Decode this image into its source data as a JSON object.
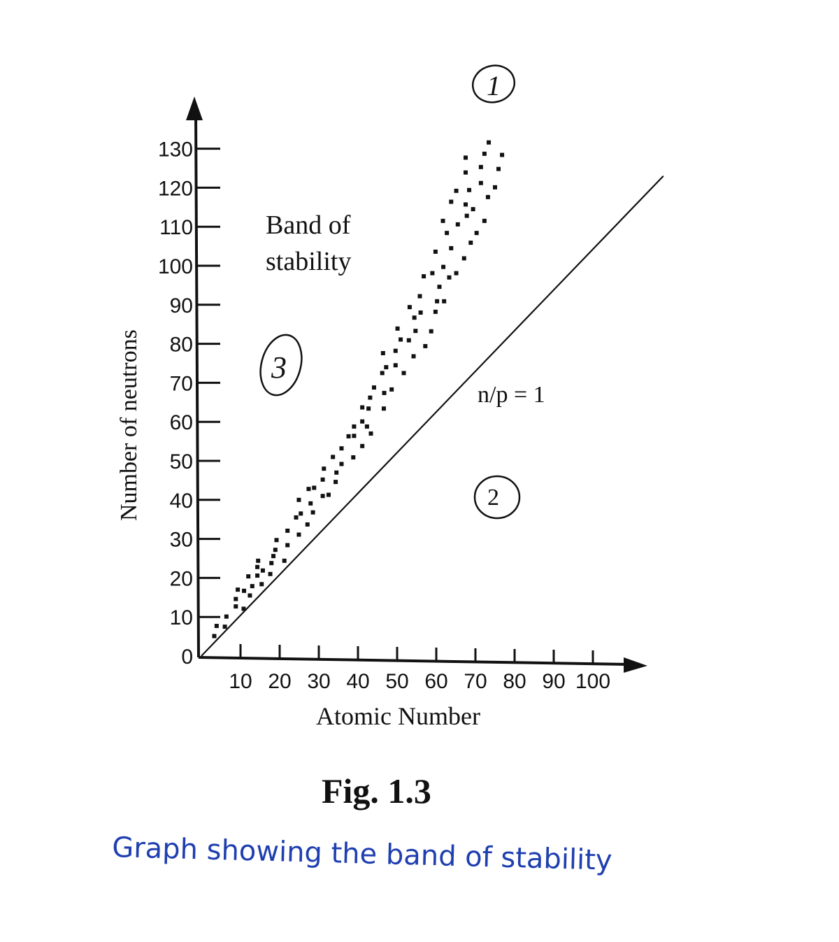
{
  "chart_data": {
    "type": "scatter",
    "title": "Fig. 1.3",
    "caption": "Graph showing the band of stability",
    "xlabel": "Atomic Number",
    "ylabel": "Number of neutrons",
    "xlim": [
      0,
      100
    ],
    "ylim": [
      0,
      130
    ],
    "x_ticks": [
      "10",
      "20",
      "30",
      "40",
      "50",
      "60",
      "70",
      "80",
      "90",
      "100"
    ],
    "y_ticks": [
      "0",
      "10",
      "20",
      "30",
      "40",
      "50",
      "60",
      "70",
      "80",
      "90",
      "100",
      "110",
      "120",
      "130"
    ],
    "grid": false,
    "legend": "none",
    "annotations": {
      "band_label_line1": "Band of",
      "band_label_line2": "stability",
      "line_label": "n/p = 1",
      "region_1": "1",
      "region_2": "2",
      "region_3": "3"
    },
    "reference_line": {
      "label": "n/p = 1",
      "points": [
        [
          0,
          0
        ],
        [
          118,
          123
        ]
      ]
    },
    "points": [
      [
        3.3,
        5.1
      ],
      [
        3.9,
        7.7
      ],
      [
        6,
        7.5
      ],
      [
        6.4,
        10.1
      ],
      [
        8.8,
        12.7
      ],
      [
        8.8,
        14.6
      ],
      [
        9.3,
        17
      ],
      [
        10.8,
        12.1
      ],
      [
        10.9,
        16.7
      ],
      [
        12,
        20.4
      ],
      [
        12.4,
        15.5
      ],
      [
        13,
        17.9
      ],
      [
        14.3,
        20.6
      ],
      [
        14.3,
        22.8
      ],
      [
        14.5,
        24.4
      ],
      [
        15.4,
        18.4
      ],
      [
        15.7,
        21.9
      ],
      [
        17.6,
        21
      ],
      [
        17.9,
        23.8
      ],
      [
        18.4,
        25.6
      ],
      [
        18.9,
        27.2
      ],
      [
        19.2,
        29.7
      ],
      [
        21.2,
        24.4
      ],
      [
        22,
        28.4
      ],
      [
        22,
        32.1
      ],
      [
        24.9,
        31.1
      ],
      [
        24.2,
        35.5
      ],
      [
        25.4,
        36.5
      ],
      [
        24.9,
        40
      ],
      [
        27.1,
        33.7
      ],
      [
        27.9,
        39.1
      ],
      [
        28.5,
        36.8
      ],
      [
        27.4,
        42.8
      ],
      [
        28.8,
        43.1
      ],
      [
        31,
        41
      ],
      [
        32.5,
        41.3
      ],
      [
        31,
        45.2
      ],
      [
        31.3,
        48
      ],
      [
        33.6,
        51
      ],
      [
        34.3,
        44.6
      ],
      [
        34.5,
        47
      ],
      [
        35.8,
        49.2
      ],
      [
        35.8,
        53.2
      ],
      [
        37.6,
        56.3
      ],
      [
        38.8,
        50.9
      ],
      [
        39,
        56.4
      ],
      [
        39,
        58.8
      ],
      [
        41.1,
        53.8
      ],
      [
        41.1,
        60.1
      ],
      [
        42.3,
        58.8
      ],
      [
        43.3,
        57
      ],
      [
        41.1,
        63.7
      ],
      [
        42.7,
        63.4
      ],
      [
        46.6,
        63.4
      ],
      [
        43.1,
        66.2
      ],
      [
        44.1,
        68.8
      ],
      [
        46.7,
        67.4
      ],
      [
        48.6,
        68.3
      ],
      [
        46.2,
        72.5
      ],
      [
        47.2,
        74
      ],
      [
        49.6,
        74.5
      ],
      [
        51.7,
        72.5
      ],
      [
        46.4,
        77.6
      ],
      [
        49.6,
        78.2
      ],
      [
        50.9,
        81.1
      ],
      [
        53,
        80.9
      ],
      [
        54.2,
        76.8
      ],
      [
        57.2,
        79.4
      ],
      [
        50.1,
        83.9
      ],
      [
        54.7,
        83.3
      ],
      [
        58.7,
        83.2
      ],
      [
        54.4,
        86.7
      ],
      [
        56,
        88
      ],
      [
        53.2,
        89.4
      ],
      [
        59.8,
        88.2
      ],
      [
        60.2,
        90.9
      ],
      [
        62,
        90.9
      ],
      [
        55.8,
        92.2
      ],
      [
        60.8,
        94.6
      ],
      [
        56.8,
        97.3
      ],
      [
        59,
        98.1
      ],
      [
        61.8,
        99.7
      ],
      [
        63.3,
        97
      ],
      [
        65.1,
        98.1
      ],
      [
        59.8,
        103.6
      ],
      [
        63.8,
        104.5
      ],
      [
        67.1,
        101.9
      ],
      [
        68.8,
        105.9
      ],
      [
        62.7,
        108.4
      ],
      [
        70.3,
        108.4
      ],
      [
        61.7,
        111.5
      ],
      [
        65.5,
        110.6
      ],
      [
        67.8,
        112.8
      ],
      [
        72.3,
        111.5
      ],
      [
        69.4,
        114.5
      ],
      [
        67.5,
        115.7
      ],
      [
        63.8,
        116.4
      ],
      [
        65.1,
        119.2
      ],
      [
        68.4,
        119.4
      ],
      [
        71.4,
        121.2
      ],
      [
        73.2,
        117.6
      ],
      [
        75,
        120.1
      ],
      [
        67.5,
        123.9
      ],
      [
        71.4,
        125.3
      ],
      [
        75.9,
        124.8
      ],
      [
        67.5,
        127.7
      ],
      [
        72.3,
        128.7
      ],
      [
        76.8,
        128.4
      ],
      [
        73.4,
        131.6
      ]
    ],
    "colors": {
      "ink": "#111111",
      "caption_ink": "#1f3fb0"
    }
  }
}
